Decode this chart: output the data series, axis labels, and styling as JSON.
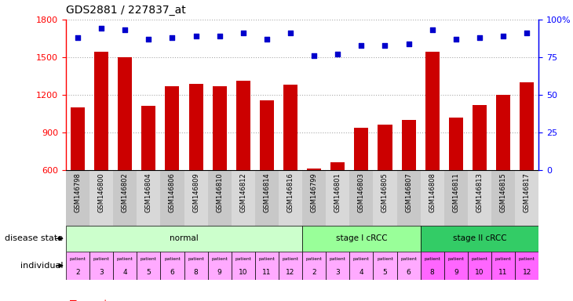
{
  "title": "GDS2881 / 227837_at",
  "samples": [
    "GSM146798",
    "GSM146800",
    "GSM146802",
    "GSM146804",
    "GSM146806",
    "GSM146809",
    "GSM146810",
    "GSM146812",
    "GSM146814",
    "GSM146816",
    "GSM146799",
    "GSM146801",
    "GSM146803",
    "GSM146805",
    "GSM146807",
    "GSM146808",
    "GSM146811",
    "GSM146813",
    "GSM146815",
    "GSM146817"
  ],
  "counts": [
    1100,
    1545,
    1500,
    1110,
    1270,
    1290,
    1270,
    1310,
    1155,
    1280,
    610,
    665,
    940,
    960,
    1000,
    1545,
    1020,
    1120,
    1200,
    1300
  ],
  "percentiles": [
    88,
    94,
    93,
    87,
    88,
    89,
    89,
    91,
    87,
    91,
    76,
    77,
    83,
    83,
    84,
    93,
    87,
    88,
    89,
    91
  ],
  "bar_color": "#cc0000",
  "dot_color": "#0000cc",
  "ylim_left": [
    600,
    1800
  ],
  "ylim_right": [
    0,
    100
  ],
  "yticks_left": [
    600,
    900,
    1200,
    1500,
    1800
  ],
  "yticks_right": [
    0,
    25,
    50,
    75,
    100
  ],
  "ytick_labels_right": [
    "0",
    "25",
    "50",
    "75",
    "100%"
  ],
  "disease_groups": [
    {
      "label": "normal",
      "start": 0,
      "end": 10,
      "color": "#ccffcc"
    },
    {
      "label": "stage I cRCC",
      "start": 10,
      "end": 15,
      "color": "#99ff99"
    },
    {
      "label": "stage II cRCC",
      "start": 15,
      "end": 20,
      "color": "#33cc66"
    }
  ],
  "individuals": [
    "2",
    "3",
    "4",
    "5",
    "6",
    "8",
    "9",
    "10",
    "11",
    "12",
    "2",
    "3",
    "4",
    "5",
    "6",
    "8",
    "9",
    "10",
    "11",
    "12"
  ],
  "indiv_colors": [
    "#ffaaff",
    "#ffaaff",
    "#ffaaff",
    "#ffaaff",
    "#ffaaff",
    "#ffaaff",
    "#ffaaff",
    "#ffaaff",
    "#ffaaff",
    "#ffaaff",
    "#ffaaff",
    "#ffaaff",
    "#ffaaff",
    "#ffaaff",
    "#ffaaff",
    "#ff66ff",
    "#ff66ff",
    "#ff66ff",
    "#ff66ff",
    "#ff66ff"
  ],
  "background_color": "#ffffff",
  "grid_color": "#aaaaaa",
  "xtick_bg_color": "#d0d0d0"
}
